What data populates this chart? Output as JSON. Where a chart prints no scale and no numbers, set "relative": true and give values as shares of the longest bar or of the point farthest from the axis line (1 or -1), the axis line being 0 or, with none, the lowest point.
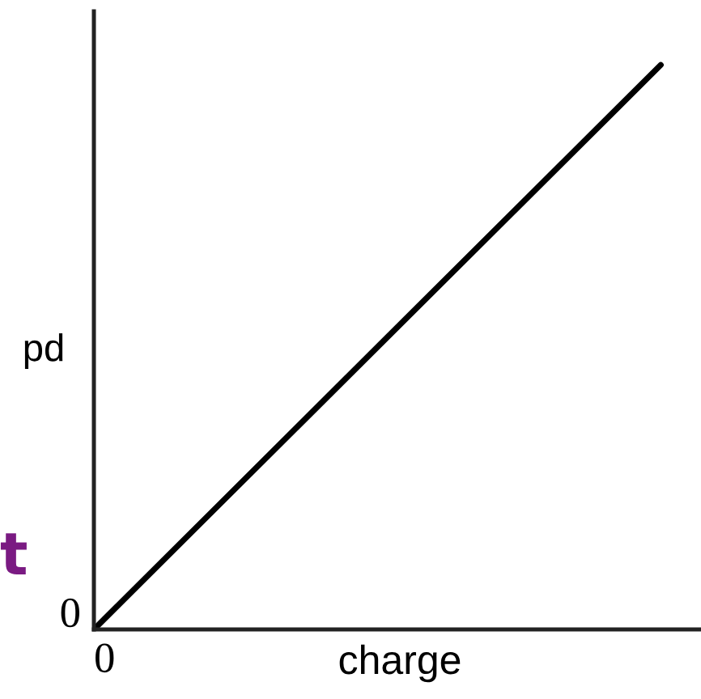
{
  "chart_data": {
    "type": "line",
    "relative": true,
    "categories": [
      null,
      null
    ],
    "series": [
      {
        "color": "#000000",
        "values": [
          0,
          1
        ]
      }
    ],
    "xlabel": "charge",
    "ylabel": "pd",
    "marker": "none",
    "line_style": "solid",
    "annotations": [
      "0",
      "0",
      "t"
    ]
  }
}
